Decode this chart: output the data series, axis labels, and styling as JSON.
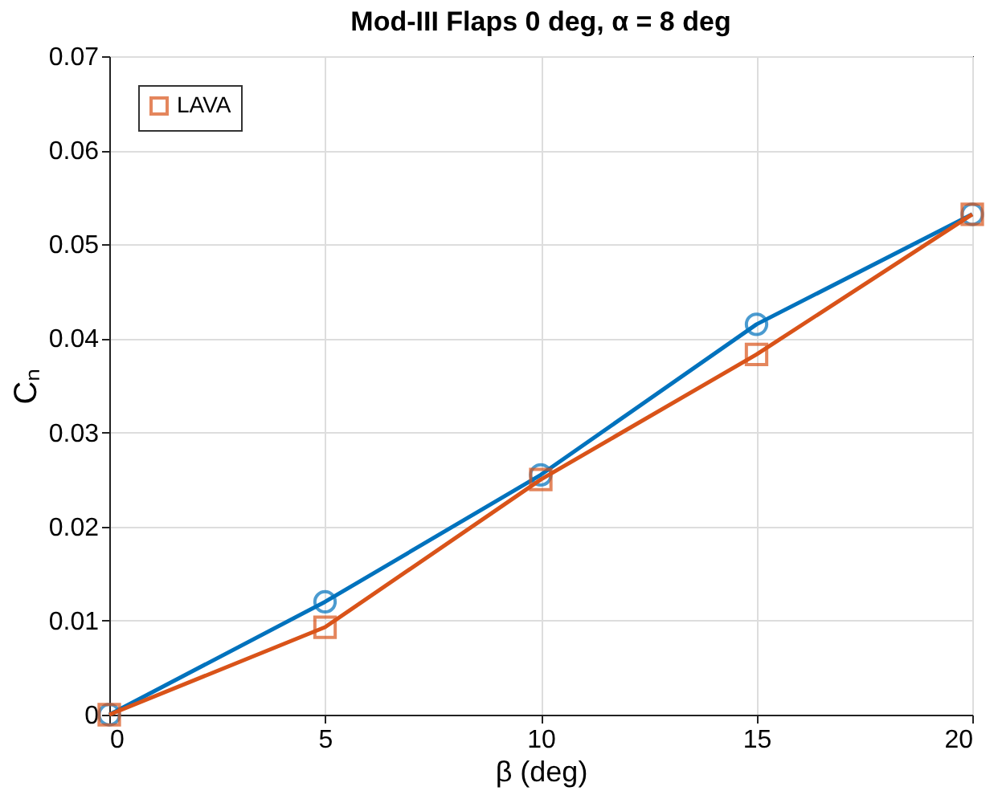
{
  "chart_data": {
    "type": "line",
    "title": "Mod-III Flaps 0 deg, α = 8 deg",
    "xlabel": "β (deg)",
    "ylabel": "Cₙ",
    "x": [
      0,
      5,
      10,
      15,
      20
    ],
    "series": [
      {
        "color": "#0072bd",
        "marker": "circle",
        "values": [
          0,
          0.012,
          0.0255,
          0.0415,
          0.0532
        ]
      },
      {
        "name": "LAVA",
        "color": "#d95319",
        "marker": "square",
        "values": [
          0,
          0.0093,
          0.025,
          0.0383,
          0.0532
        ]
      }
    ],
    "xlim": [
      0,
      20
    ],
    "xticks": [
      0,
      5,
      10,
      15,
      20
    ],
    "ylim": [
      0,
      0.07
    ],
    "yticks": [
      0,
      0.01,
      0.02,
      0.03,
      0.04,
      0.05,
      0.06,
      0.07
    ],
    "grid": true,
    "legend": "top left",
    "line_style": "solid"
  }
}
